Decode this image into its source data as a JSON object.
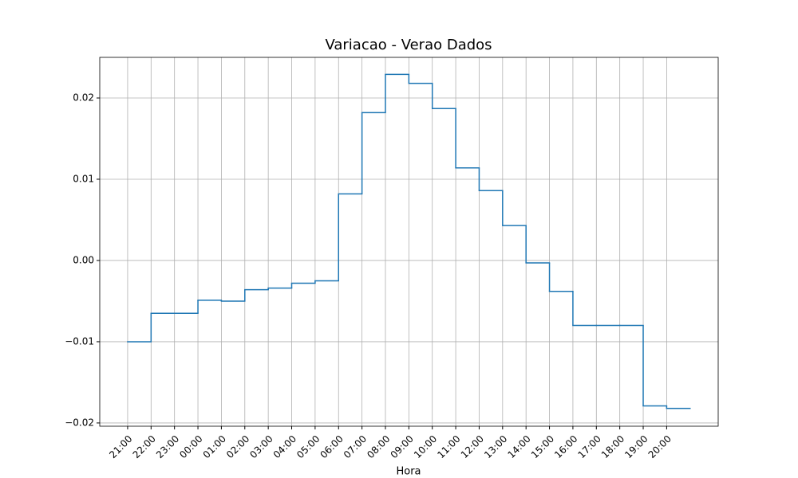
{
  "chart_data": {
    "type": "step",
    "title": "Variacao - Verao Dados",
    "xlabel": "Hora",
    "categories": [
      "21:00",
      "22:00",
      "23:00",
      "00:00",
      "01:00",
      "02:00",
      "03:00",
      "04:00",
      "05:00",
      "06:00",
      "07:00",
      "08:00",
      "09:00",
      "10:00",
      "11:00",
      "12:00",
      "13:00",
      "14:00",
      "15:00",
      "16:00",
      "17:00",
      "18:00",
      "19:00",
      "20:00"
    ],
    "values": [
      -0.01,
      -0.0065,
      -0.0065,
      -0.0049,
      -0.005,
      -0.0036,
      -0.0034,
      -0.0028,
      -0.0025,
      0.0082,
      0.0182,
      0.0229,
      0.0218,
      0.0187,
      0.0114,
      0.0086,
      0.0043,
      -0.0003,
      -0.0038,
      -0.008,
      -0.008,
      -0.008,
      -0.0179,
      -0.0182
    ],
    "color": "#1f77b4",
    "ylim": [
      -0.0204,
      0.025
    ],
    "yticks": [
      {
        "value": -0.02,
        "label": "−0.02"
      },
      {
        "value": -0.01,
        "label": "−0.01"
      },
      {
        "value": 0,
        "label": "0.00"
      },
      0.01,
      0.02
    ],
    "grid": true
  }
}
